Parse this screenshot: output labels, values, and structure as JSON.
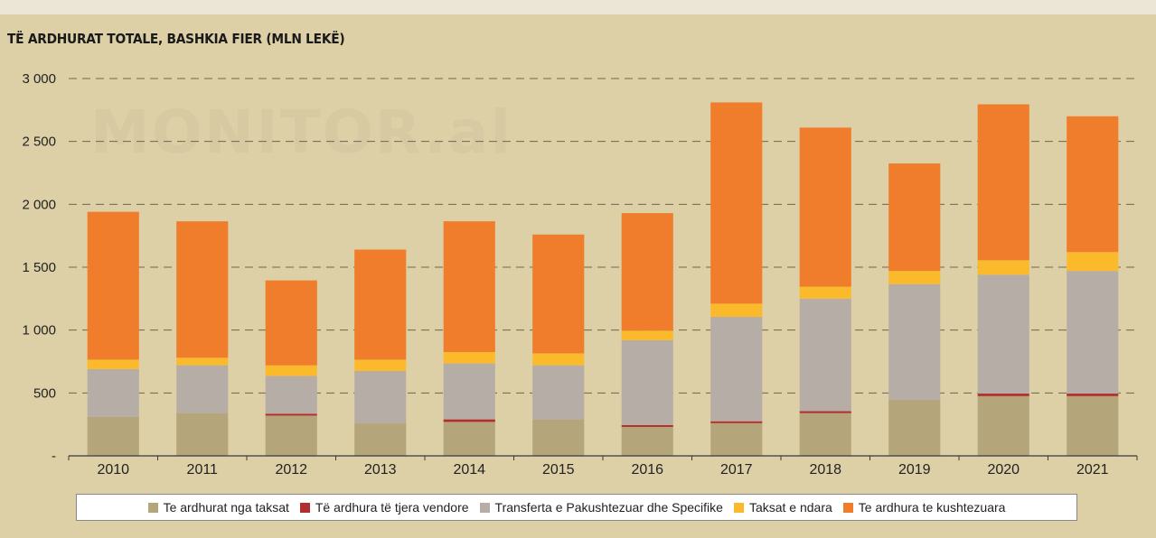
{
  "chart_data": {
    "type": "bar",
    "stacked": true,
    "title": "TË ARDHURAT TOTALE, BASHKIA FIER (MLN LEKË)",
    "watermark": "MONITOR.al",
    "categories": [
      "2010",
      "2011",
      "2012",
      "2013",
      "2014",
      "2015",
      "2016",
      "2017",
      "2018",
      "2019",
      "2020",
      "2021"
    ],
    "ylim": [
      0,
      3000
    ],
    "yticks": [
      {
        "value": 0,
        "label": "-"
      },
      {
        "value": 500,
        "label": "500"
      },
      {
        "value": 1000,
        "label": "1 000"
      },
      {
        "value": 1500,
        "label": "1 500"
      },
      {
        "value": 2000,
        "label": "2 000"
      },
      {
        "value": 2500,
        "label": "2 500"
      },
      {
        "value": 3000,
        "label": "3 000"
      }
    ],
    "grid": true,
    "legend_position": "bottom",
    "series": [
      {
        "name": "Te ardhurat nga taksat",
        "color": "#b5a57b",
        "values": [
          310,
          340,
          320,
          260,
          270,
          290,
          230,
          260,
          340,
          445,
          475,
          475
        ]
      },
      {
        "name": "Të ardhura të tjera vendore",
        "color": "#b22e2e",
        "values": [
          0,
          0,
          15,
          0,
          20,
          0,
          15,
          15,
          15,
          0,
          20,
          20
        ]
      },
      {
        "name": "Transferta e Pakushtezuar dhe Specifike",
        "color": "#b6ada6",
        "values": [
          380,
          380,
          300,
          415,
          445,
          430,
          675,
          830,
          895,
          920,
          945,
          975
        ]
      },
      {
        "name": "Taksat e ndara",
        "color": "#fbba2c",
        "values": [
          75,
          60,
          85,
          90,
          90,
          95,
          75,
          105,
          95,
          105,
          115,
          150
        ]
      },
      {
        "name": "Te ardhura te kushtezuara",
        "color": "#f07d2c",
        "values": [
          1175,
          1085,
          675,
          875,
          1040,
          945,
          935,
          1600,
          1265,
          855,
          1240,
          1080
        ]
      }
    ]
  }
}
